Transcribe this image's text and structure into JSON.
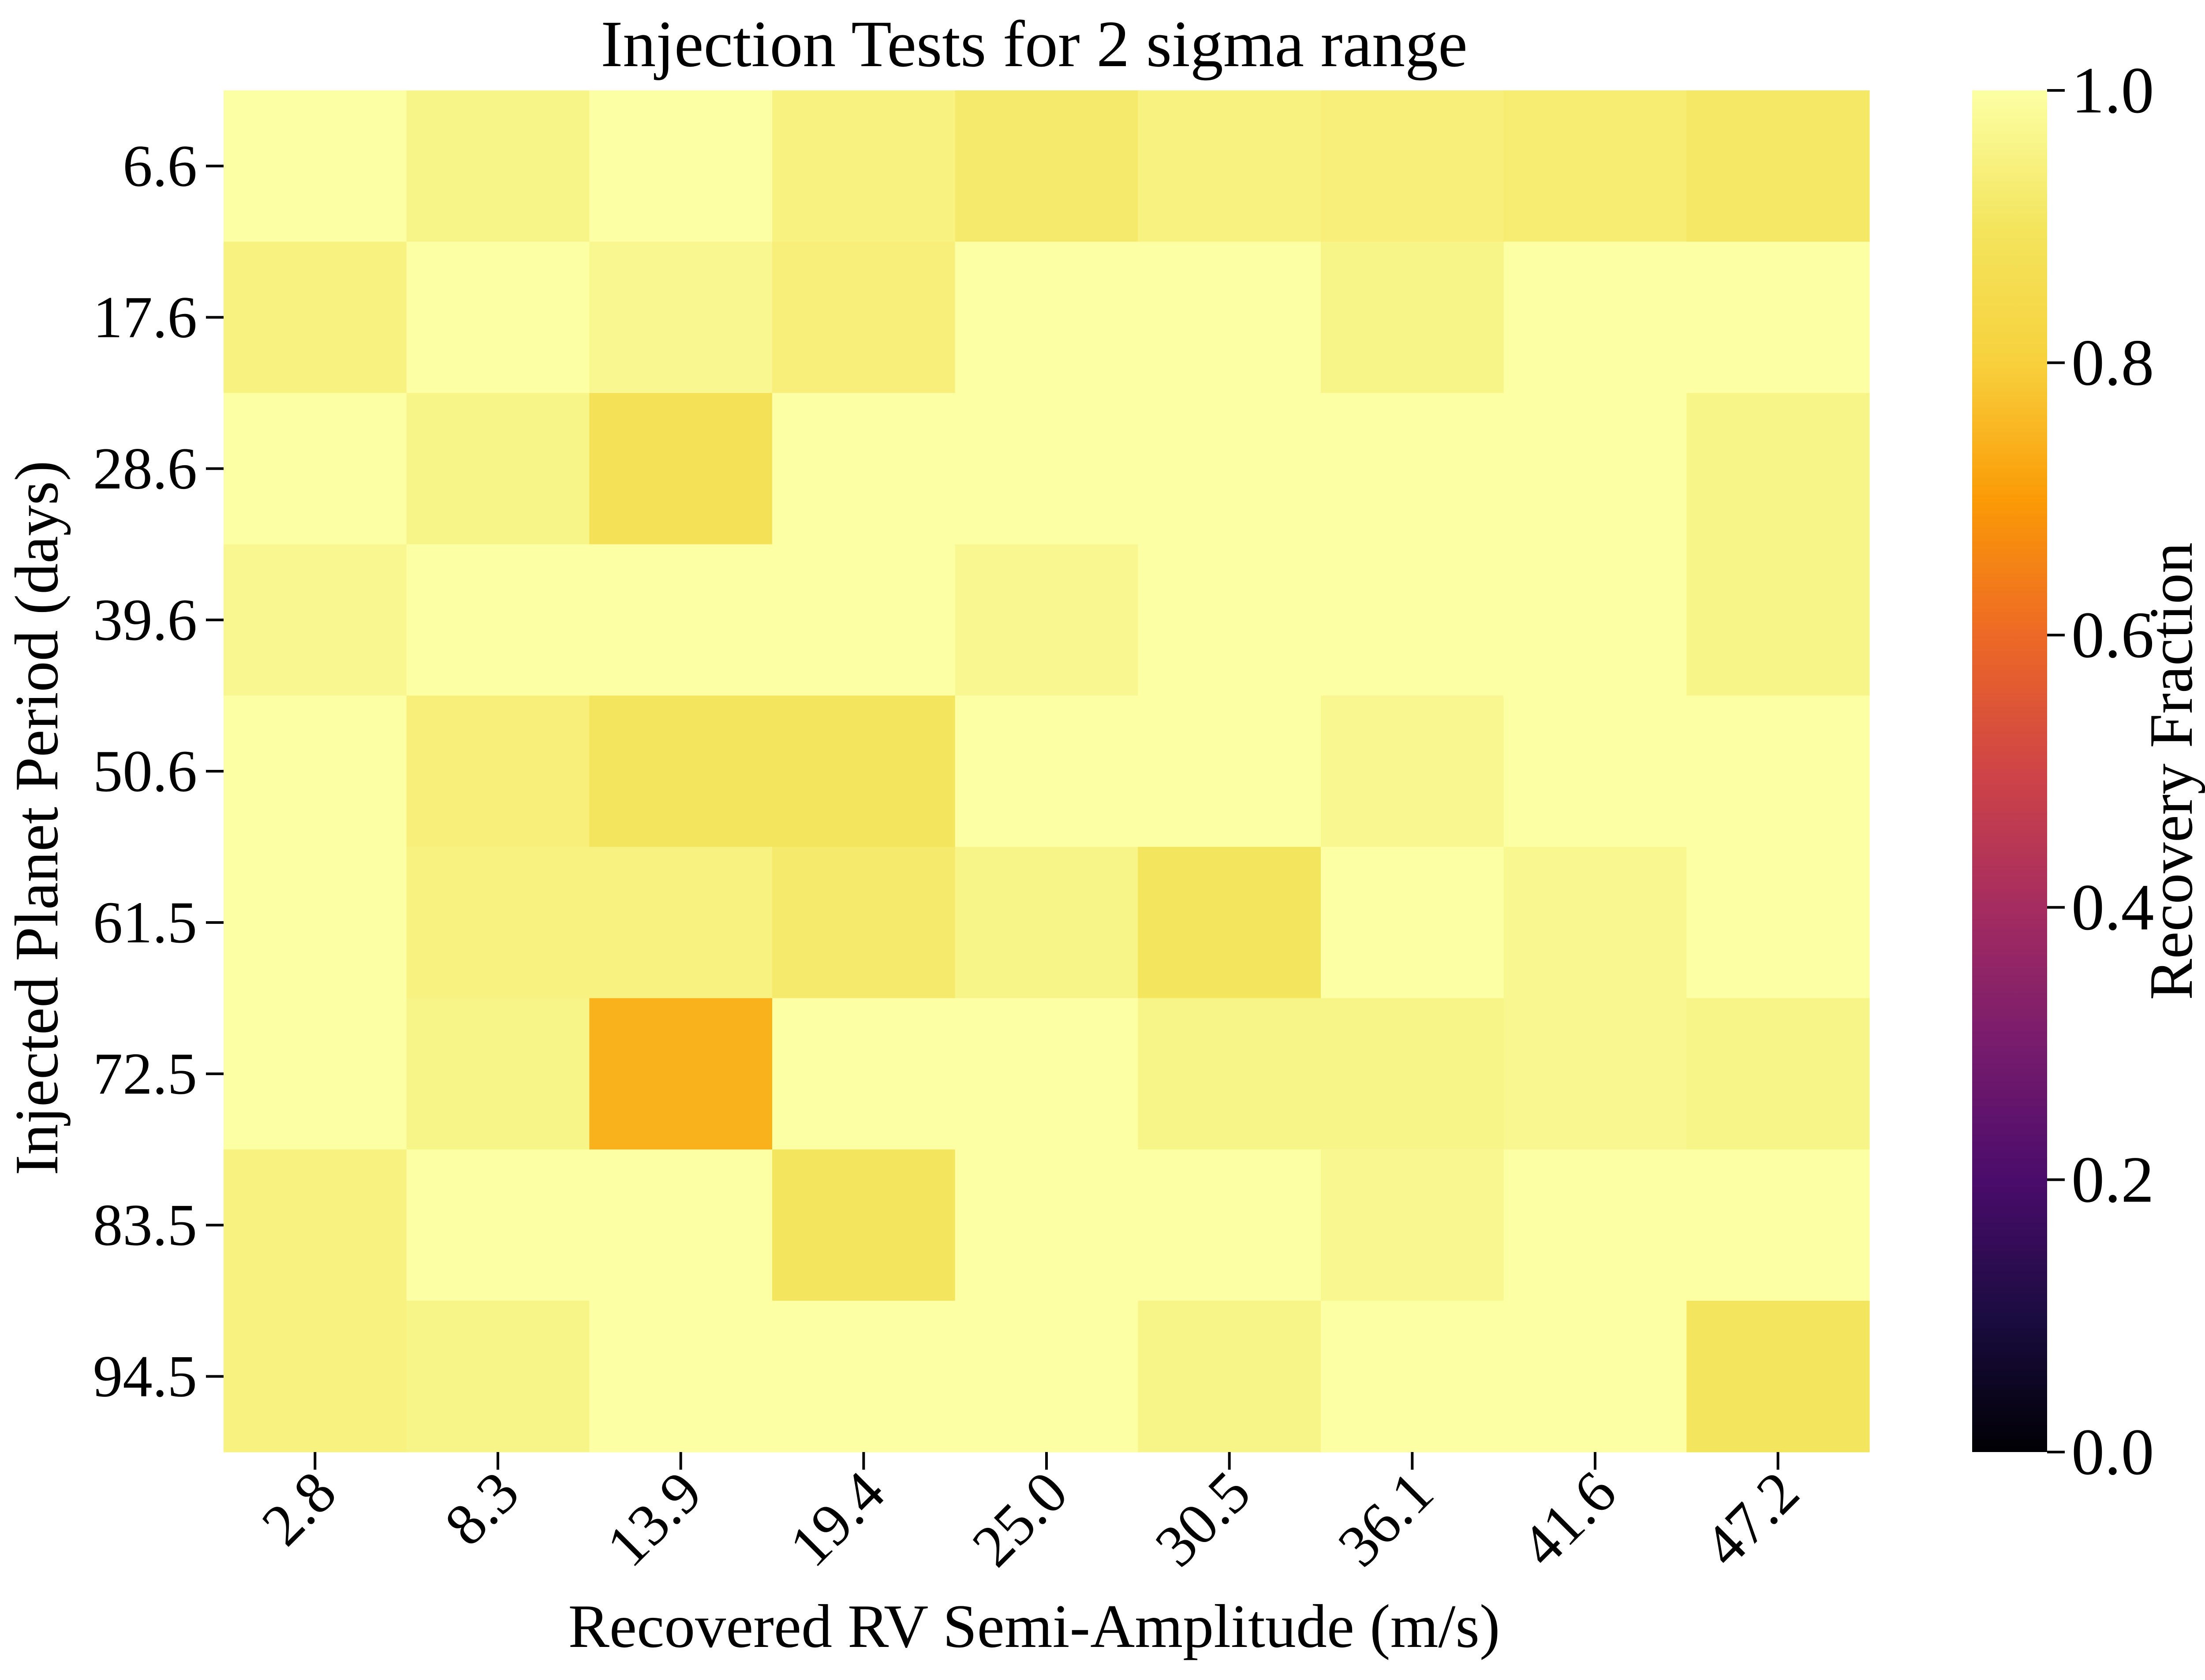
{
  "chart_data": {
    "type": "heatmap",
    "title": "Injection Tests for 2 sigma range",
    "xlabel": "Recovered RV Semi-Amplitude (m/s)",
    "ylabel": "Injected Planet Period (days)",
    "x_categories": [
      "2.8",
      "8.3",
      "13.9",
      "19.4",
      "25.0",
      "30.5",
      "36.1",
      "41.6",
      "47.2"
    ],
    "y_categories": [
      "6.6",
      "17.6",
      "28.6",
      "39.6",
      "50.6",
      "61.5",
      "72.5",
      "83.5",
      "94.5"
    ],
    "values": [
      [
        1.0,
        0.96,
        1.0,
        0.95,
        0.92,
        0.95,
        0.94,
        0.93,
        0.91
      ],
      [
        0.95,
        1.0,
        0.97,
        0.94,
        1.0,
        1.0,
        0.96,
        1.0,
        1.0
      ],
      [
        1.0,
        0.96,
        0.88,
        1.0,
        1.0,
        1.0,
        1.0,
        1.0,
        0.96
      ],
      [
        0.97,
        1.0,
        1.0,
        1.0,
        0.97,
        1.0,
        1.0,
        1.0,
        0.96
      ],
      [
        1.0,
        0.94,
        0.9,
        0.9,
        1.0,
        1.0,
        0.97,
        1.0,
        1.0
      ],
      [
        1.0,
        0.95,
        0.95,
        0.92,
        0.96,
        0.9,
        1.0,
        0.97,
        1.0
      ],
      [
        1.0,
        0.96,
        0.74,
        1.0,
        1.0,
        0.96,
        0.96,
        0.97,
        0.96
      ],
      [
        0.95,
        1.0,
        1.0,
        0.9,
        1.0,
        1.0,
        0.97,
        1.0,
        1.0
      ],
      [
        0.95,
        0.96,
        1.0,
        1.0,
        1.0,
        0.96,
        1.0,
        1.0,
        0.9
      ]
    ],
    "colormap": "inferno",
    "colorbar": {
      "label": "Recovery Fraction",
      "range": [
        0.0,
        1.0
      ],
      "ticks": [
        "0.0",
        "0.2",
        "0.4",
        "0.6",
        "0.8",
        "1.0"
      ]
    },
    "grid": false,
    "legend": "none"
  }
}
